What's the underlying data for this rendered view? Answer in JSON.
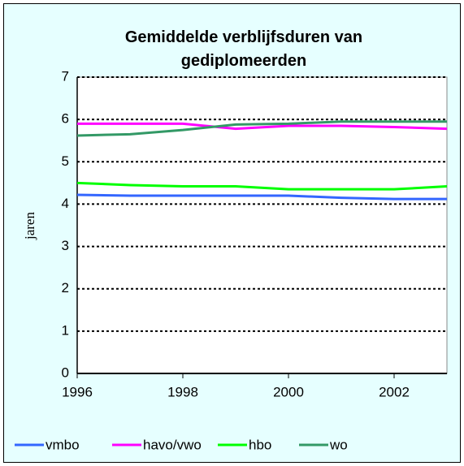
{
  "chart_data": {
    "type": "line",
    "title": "Gemiddelde verblijfsduren van gediplomeerden",
    "y_label": "jaren",
    "x": [
      1996,
      1997,
      1998,
      1999,
      2000,
      2001,
      2002,
      2003
    ],
    "xlim": [
      1996,
      2003
    ],
    "xticks": [
      1996,
      1998,
      2000,
      2002
    ],
    "ylim": [
      0,
      7
    ],
    "yticks": [
      0,
      1,
      2,
      3,
      4,
      5,
      6,
      7
    ],
    "grid": true,
    "legend": "bottom",
    "series": [
      {
        "name": "vmbo",
        "color": "#3366ff",
        "values": [
          4.22,
          4.2,
          4.2,
          4.2,
          4.2,
          4.15,
          4.12,
          4.12
        ]
      },
      {
        "name": "havo/vwo",
        "color": "#ff00ff",
        "values": [
          5.9,
          5.9,
          5.9,
          5.78,
          5.85,
          5.85,
          5.82,
          5.78
        ]
      },
      {
        "name": "hbo",
        "color": "#00ff00",
        "values": [
          4.5,
          4.45,
          4.42,
          4.42,
          4.35,
          4.35,
          4.35,
          4.42
        ]
      },
      {
        "name": "wo",
        "color": "#339966",
        "values": [
          5.62,
          5.65,
          5.75,
          5.88,
          5.9,
          5.95,
          5.95,
          5.95
        ]
      }
    ]
  }
}
